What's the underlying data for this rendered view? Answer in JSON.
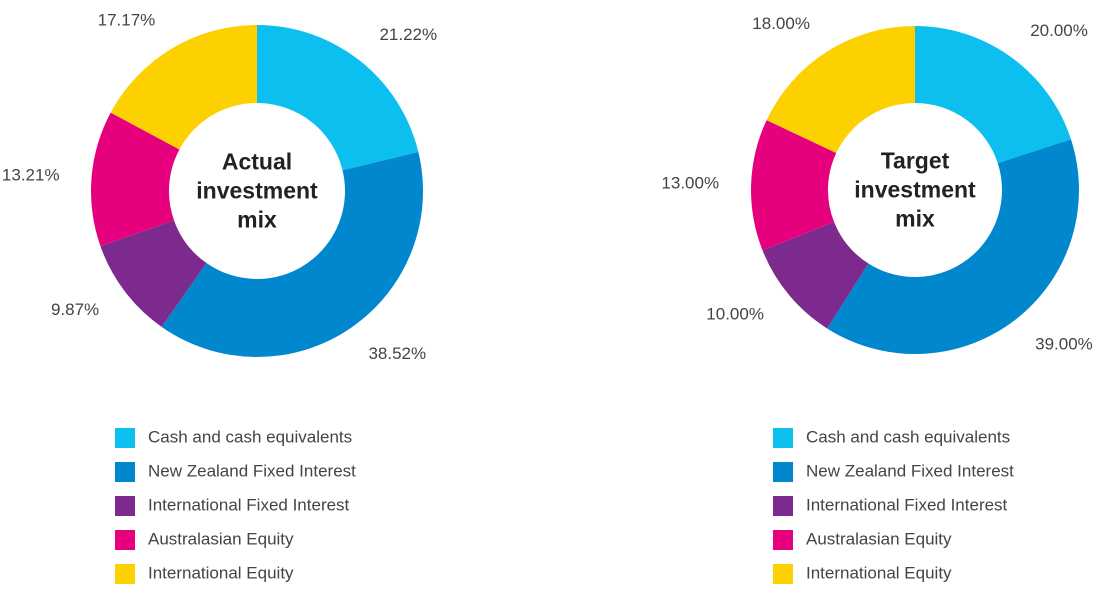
{
  "chart_data": [
    {
      "type": "pie",
      "title": "Actual investment mix",
      "categories": [
        "Cash and cash equivalents",
        "New Zealand Fixed Interest",
        "International Fixed Interest",
        "Australasian Equity",
        "International Equity"
      ],
      "values": [
        21.22,
        38.52,
        9.87,
        13.21,
        17.17
      ],
      "value_labels": [
        "21.22%",
        "38.52%",
        "9.87%",
        "13.21%",
        "17.17%"
      ],
      "colors": [
        "#0dbfef",
        "#0087cd",
        "#7d2a8e",
        "#e6007e",
        "#fdd000"
      ]
    },
    {
      "type": "pie",
      "title": "Target investment mix",
      "categories": [
        "Cash and cash equivalents",
        "New Zealand Fixed Interest",
        "International Fixed Interest",
        "Australasian Equity",
        "International Equity"
      ],
      "values": [
        20,
        39,
        10,
        13,
        18
      ],
      "value_labels": [
        "20.00%",
        "39.00%",
        "10.00%",
        "13.00%",
        "18.00%"
      ],
      "colors": [
        "#0dbfef",
        "#0087cd",
        "#7d2a8e",
        "#e6007e",
        "#fdd000"
      ]
    }
  ]
}
